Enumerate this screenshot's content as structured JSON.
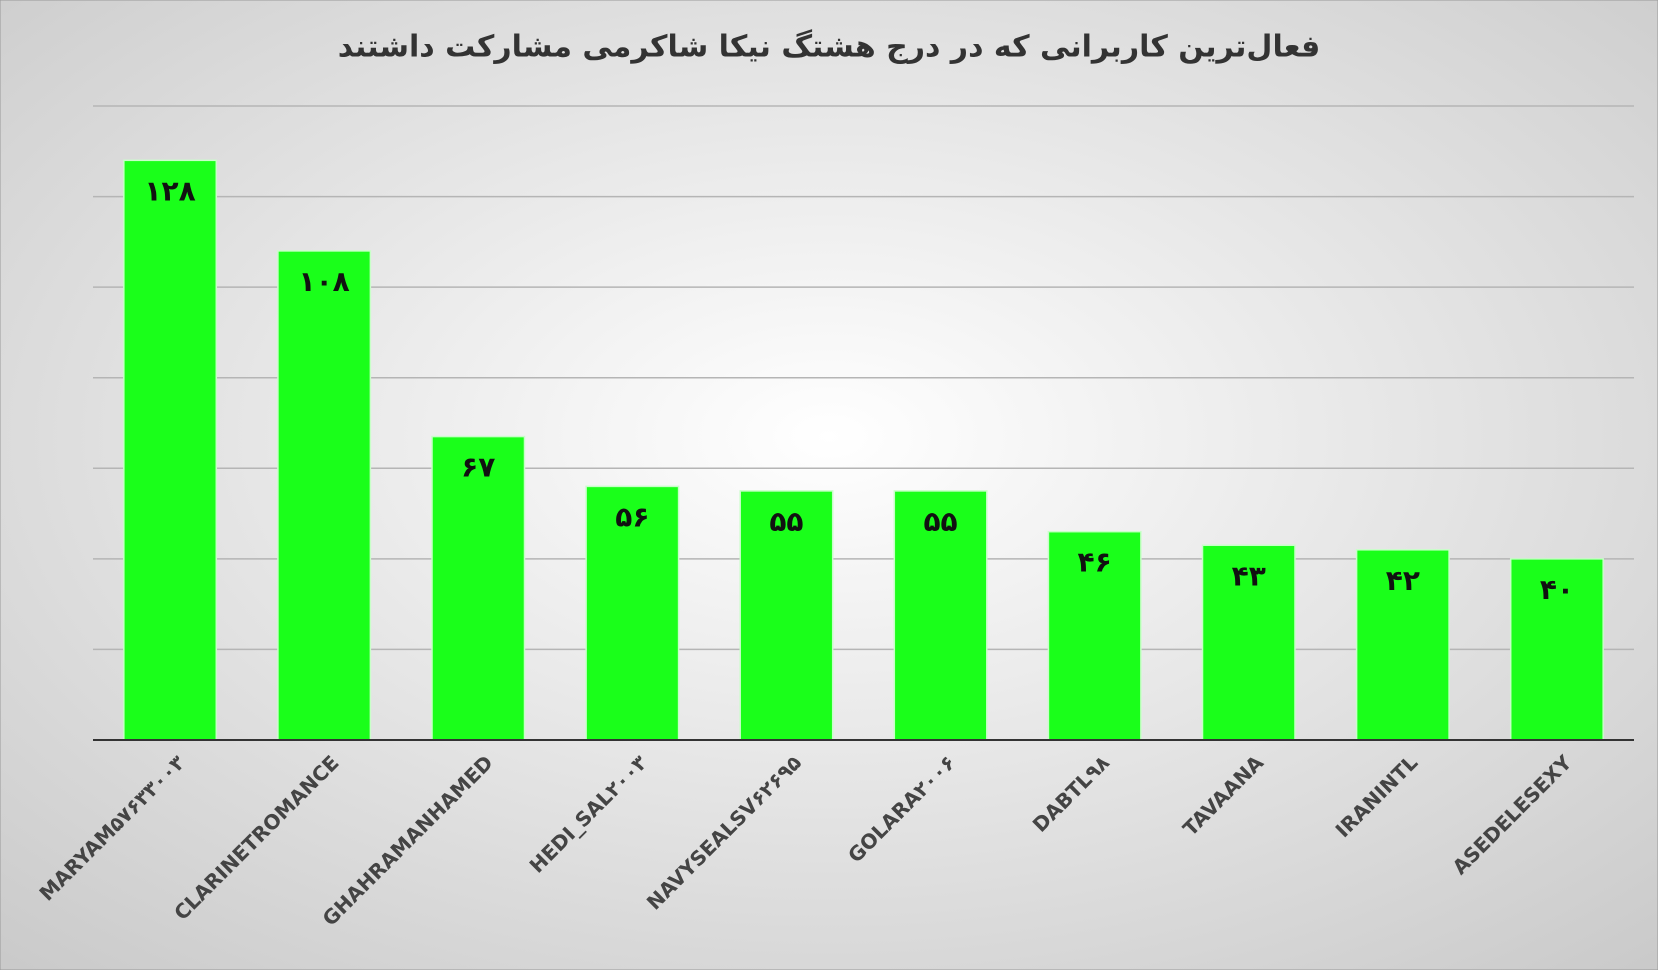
{
  "chart_data": {
    "type": "bar",
    "title": "فعال‌ترین کاربرانی که در درج هشتگ نیکا شاکرمی مشارکت داشتند",
    "categories": [
      "MARYAM۵۷۶۳۳۰۰۳",
      "CLARINETROMANCE",
      "GHAHRAMANHAMED",
      "HEDI_SAL۲۰۰۳",
      "NAVYSEALSV۶۲۶۹۵",
      "GOLARA۲۰۰۶",
      "DABTL۹۸",
      "TAVAANA",
      "IRANINTL",
      "ASEDELESEXY"
    ],
    "values": [
      128,
      108,
      67,
      56,
      55,
      55,
      46,
      43,
      42,
      40
    ],
    "value_labels": [
      "۱۲۸",
      "۱۰۸",
      "۶۷",
      "۵۶",
      "۵۵",
      "۵۵",
      "۴۶",
      "۴۳",
      "۴۲",
      "۴۰"
    ],
    "color": "#1aff1a",
    "ylim": [
      0,
      140
    ],
    "yticks": [
      0,
      20,
      40,
      60,
      80,
      100,
      120,
      140
    ],
    "grid": true
  }
}
